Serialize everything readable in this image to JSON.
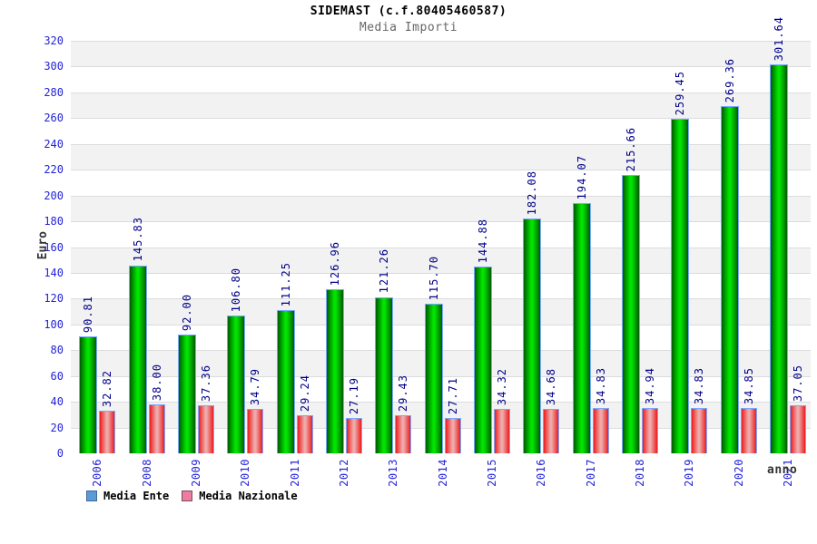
{
  "chart_data": {
    "type": "bar",
    "title": "SIDEMAST (c.f.80405460587)",
    "subtitle": "Media Importi",
    "xlabel": "anno",
    "ylabel": "Euro",
    "ylim": [
      0,
      320
    ],
    "ytick_step": 20,
    "grid": "horizontal-bands",
    "legend_position": "bottom-left",
    "band_colors": [
      "#ffffff",
      "#f2f2f2"
    ],
    "gridline_color": "#dcdcdc",
    "plot_border_color": "#cccccc",
    "tick_label_color": "#2323d7",
    "value_label_color": "#00008b",
    "categories": [
      "2006",
      "2008",
      "2009",
      "2010",
      "2011",
      "2012",
      "2013",
      "2014",
      "2015",
      "2016",
      "2017",
      "2018",
      "2019",
      "2020",
      "2021"
    ],
    "series": [
      {
        "name": "Media Ente",
        "values": [
          90.81,
          145.83,
          92.0,
          106.8,
          111.25,
          126.96,
          121.26,
          115.7,
          144.88,
          182.08,
          194.07,
          215.66,
          259.45,
          269.36,
          301.64
        ],
        "bar_edge_color": "#005c00",
        "bar_mid_color": "#00e400",
        "bar_outline_color": "#7aa7ff",
        "legend_fill": "#5b9bd5",
        "legend_border": "#3c6a9e"
      },
      {
        "name": "Media Nazionale",
        "values": [
          32.82,
          38.0,
          37.36,
          34.79,
          29.24,
          27.19,
          29.43,
          27.71,
          34.32,
          34.68,
          34.83,
          34.94,
          34.83,
          34.85,
          37.05
        ],
        "bar_edge_color": "#ee1c1c",
        "bar_mid_color": "#eeaaaa",
        "bar_outline_color": "#7aa7ff",
        "legend_fill": "#ed7d9f",
        "legend_border": "#7a4a5a"
      }
    ]
  }
}
